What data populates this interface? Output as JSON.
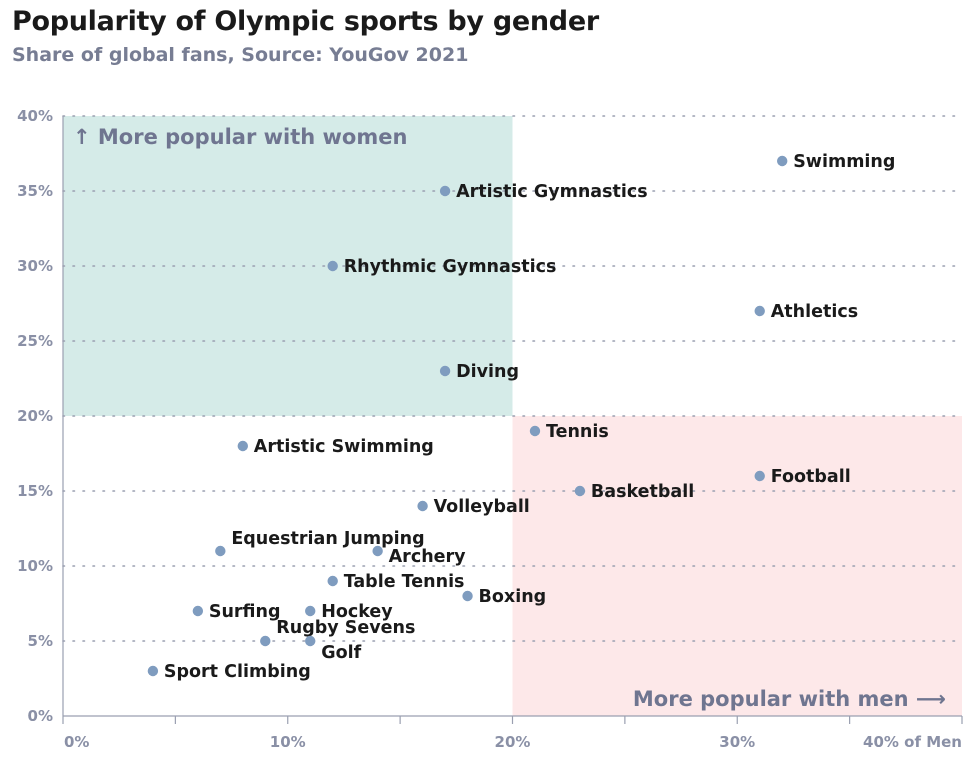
{
  "title": "Popularity of Olympic sports by gender",
  "subtitle": "Share of global fans, Source: YouGov 2021",
  "chart_data": {
    "type": "scatter",
    "title": "Popularity of Olympic sports by gender",
    "subtitle": "Share of global fans, Source: YouGov 2021",
    "x_axis": {
      "range": [
        0,
        40
      ],
      "ticks": [
        0,
        10,
        20,
        30,
        40
      ],
      "tick_labels": [
        "0%",
        "10%",
        "20%",
        "30%",
        "40% of Men"
      ]
    },
    "y_axis": {
      "range": [
        0,
        40
      ],
      "ticks": [
        0,
        5,
        10,
        15,
        20,
        25,
        30,
        35,
        40
      ],
      "tick_labels": [
        "0%",
        "5%",
        "10%",
        "15%",
        "20%",
        "25%",
        "30%",
        "35%",
        "40%"
      ]
    },
    "grid": "dotted horizontal",
    "regions": [
      {
        "label": "↑ More popular with women",
        "x_range": [
          0,
          20
        ],
        "y_range": [
          20,
          40
        ],
        "color": "#d5ebe8"
      },
      {
        "label": "More popular with men ⟶",
        "x_range": [
          20,
          40
        ],
        "y_range": [
          0,
          20
        ],
        "color": "#fde8e9"
      }
    ],
    "point_color": "#7f9cbf",
    "points": [
      {
        "label": "Swimming",
        "x": 32,
        "y": 37
      },
      {
        "label": "Artistic Gymnastics",
        "x": 17,
        "y": 35
      },
      {
        "label": "Rhythmic Gymnastics",
        "x": 12,
        "y": 30
      },
      {
        "label": "Athletics",
        "x": 31,
        "y": 27
      },
      {
        "label": "Diving",
        "x": 17,
        "y": 23
      },
      {
        "label": "Tennis",
        "x": 21,
        "y": 19
      },
      {
        "label": "Artistic Swimming",
        "x": 8,
        "y": 18
      },
      {
        "label": "Football",
        "x": 31,
        "y": 16
      },
      {
        "label": "Basketball",
        "x": 23,
        "y": 15
      },
      {
        "label": "Volleyball",
        "x": 16,
        "y": 14
      },
      {
        "label": "Equestrian Jumping",
        "x": 7,
        "y": 11
      },
      {
        "label": "Archery",
        "x": 14,
        "y": 11
      },
      {
        "label": "Table Tennis",
        "x": 12,
        "y": 9
      },
      {
        "label": "Boxing",
        "x": 18,
        "y": 8
      },
      {
        "label": "Surfing",
        "x": 6,
        "y": 7
      },
      {
        "label": "Hockey",
        "x": 11,
        "y": 7
      },
      {
        "label": "Rugby Sevens",
        "x": 9,
        "y": 5
      },
      {
        "label": "Golf",
        "x": 11,
        "y": 5
      },
      {
        "label": "Sport Climbing",
        "x": 4,
        "y": 3
      }
    ]
  }
}
